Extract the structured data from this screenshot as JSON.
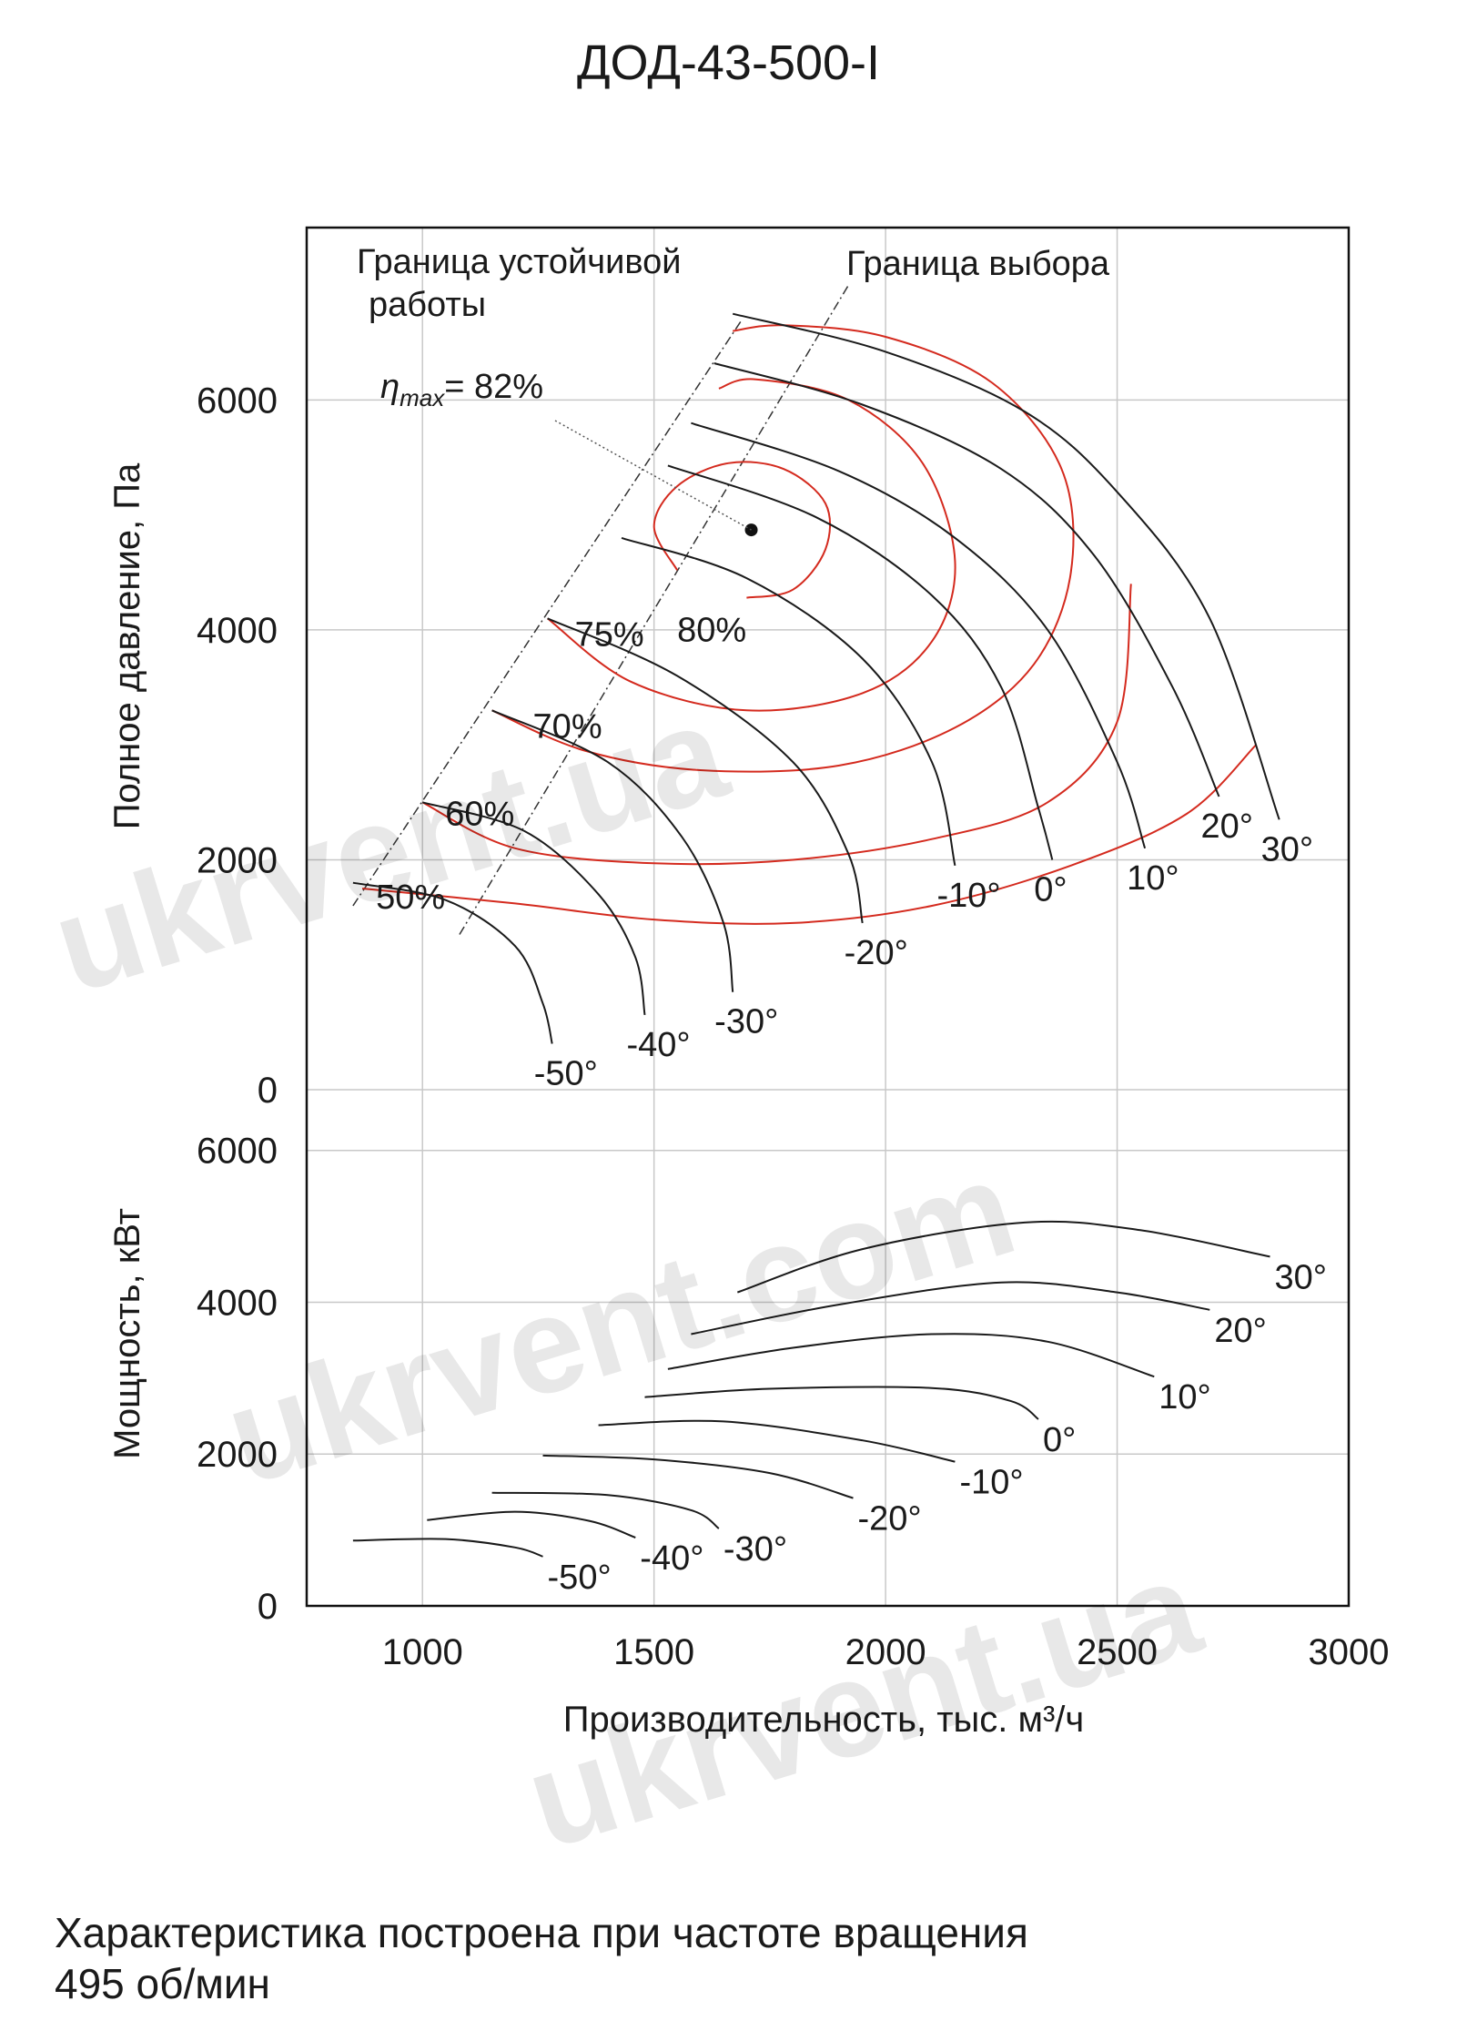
{
  "page": {
    "title": "ДОД-43-500-I",
    "footnote_line1": "Характеристика построена при частоте вращения",
    "footnote_line2": "495 об/мин",
    "watermark": "ukrvent.ua",
    "watermark_alt": "ukrvent.com"
  },
  "chart_data": {
    "type": "line",
    "title": "ДОД-43-500-I",
    "xlabel": "Производительность, тыс. м³/ч",
    "xlim": [
      750,
      3000
    ],
    "xticks": [
      "1000",
      "1500",
      "2000",
      "2500",
      "3000"
    ],
    "grid": true,
    "colors": {
      "curve": "#1a1a1a",
      "efficiency": "#d42a1e",
      "grid": "#c8c8c8"
    },
    "pressure": {
      "ylabel": "Полное давление, Па",
      "ylim": [
        0,
        7500
      ],
      "yticks": [
        "0",
        "2000",
        "4000",
        "6000"
      ],
      "boundary_labels": {
        "stable": [
          "Граница устойчивой",
          "работы"
        ],
        "selection": "Граница выбора"
      },
      "eta_max": {
        "label_symbol": "η",
        "label_sub": "max",
        "label_value": "= 82%",
        "x": 1710,
        "y": 4870
      },
      "blade_curves": [
        {
          "name": "30°",
          "label": "30°",
          "points": [
            [
              1670,
              6750
            ],
            [
              2000,
              6420
            ],
            [
              2300,
              5900
            ],
            [
              2500,
              5200
            ],
            [
              2700,
              4100
            ],
            [
              2850,
              2350
            ]
          ]
        },
        {
          "name": "20°",
          "label": "20°",
          "points": [
            [
              1630,
              6320
            ],
            [
              1950,
              5960
            ],
            [
              2250,
              5400
            ],
            [
              2450,
              4650
            ],
            [
              2620,
              3500
            ],
            [
              2720,
              2550
            ]
          ]
        },
        {
          "name": "10°",
          "label": "10°",
          "points": [
            [
              1580,
              5800
            ],
            [
              1900,
              5380
            ],
            [
              2150,
              4800
            ],
            [
              2350,
              4000
            ],
            [
              2500,
              2850
            ],
            [
              2560,
              2100
            ]
          ]
        },
        {
          "name": "0°",
          "label": "0°",
          "points": [
            [
              1530,
              5430
            ],
            [
              1850,
              4980
            ],
            [
              2100,
              4300
            ],
            [
              2250,
              3500
            ],
            [
              2330,
              2450
            ],
            [
              2360,
              2000
            ]
          ]
        },
        {
          "name": "-10°",
          "label": "-10°",
          "points": [
            [
              1430,
              4800
            ],
            [
              1700,
              4450
            ],
            [
              1950,
              3750
            ],
            [
              2100,
              2850
            ],
            [
              2150,
              1950
            ]
          ]
        },
        {
          "name": "-20°",
          "label": "-20°",
          "points": [
            [
              1270,
              4100
            ],
            [
              1550,
              3600
            ],
            [
              1800,
              2850
            ],
            [
              1920,
              2050
            ],
            [
              1950,
              1450
            ]
          ]
        },
        {
          "name": "-30°",
          "label": "-30°",
          "points": [
            [
              1150,
              3300
            ],
            [
              1400,
              2850
            ],
            [
              1560,
              2200
            ],
            [
              1650,
              1450
            ],
            [
              1670,
              850
            ]
          ]
        },
        {
          "name": "-40°",
          "label": "-40°",
          "points": [
            [
              1000,
              2500
            ],
            [
              1220,
              2250
            ],
            [
              1380,
              1700
            ],
            [
              1460,
              1150
            ],
            [
              1480,
              650
            ]
          ]
        },
        {
          "name": "-50°",
          "label": "-50°",
          "points": [
            [
              850,
              1800
            ],
            [
              1050,
              1650
            ],
            [
              1200,
              1250
            ],
            [
              1260,
              750
            ],
            [
              1280,
              400
            ]
          ]
        }
      ],
      "efficiency_curves": [
        {
          "name": "50%",
          "label": "50%",
          "points": [
            [
              870,
              1750
            ],
            [
              1200,
              1620
            ],
            [
              1500,
              1480
            ],
            [
              1800,
              1450
            ],
            [
              2100,
              1600
            ],
            [
              2400,
              1950
            ],
            [
              2650,
              2400
            ],
            [
              2800,
              3000
            ]
          ]
        },
        {
          "name": "60%",
          "label": "60%",
          "points": [
            [
              1000,
              2500
            ],
            [
              1200,
              2100
            ],
            [
              1500,
              1970
            ],
            [
              1800,
              2000
            ],
            [
              2100,
              2180
            ],
            [
              2350,
              2500
            ],
            [
              2500,
              3200
            ],
            [
              2530,
              4400
            ]
          ]
        },
        {
          "name": "70%",
          "label": "70%",
          "points": [
            [
              1150,
              3300
            ],
            [
              1350,
              2950
            ],
            [
              1600,
              2780
            ],
            [
              1900,
              2820
            ],
            [
              2150,
              3150
            ],
            [
              2320,
              3700
            ],
            [
              2400,
              4500
            ],
            [
              2380,
              5400
            ],
            [
              2230,
              6150
            ],
            [
              2000,
              6550
            ],
            [
              1780,
              6650
            ],
            [
              1670,
              6600
            ]
          ]
        },
        {
          "name": "75%",
          "label": "75%",
          "points": [
            [
              1270,
              4100
            ],
            [
              1450,
              3550
            ],
            [
              1700,
              3300
            ],
            [
              1950,
              3450
            ],
            [
              2100,
              3900
            ],
            [
              2150,
              4600
            ],
            [
              2080,
              5450
            ],
            [
              1920,
              6000
            ],
            [
              1720,
              6180
            ],
            [
              1640,
              6100
            ]
          ]
        },
        {
          "name": "80%",
          "label": "80%",
          "points": [
            [
              1550,
              4520
            ],
            [
              1500,
              4900
            ],
            [
              1550,
              5250
            ],
            [
              1660,
              5450
            ],
            [
              1780,
              5400
            ],
            [
              1870,
              5100
            ],
            [
              1870,
              4700
            ],
            [
              1800,
              4350
            ],
            [
              1700,
              4280
            ]
          ]
        }
      ]
    },
    "power": {
      "ylabel": "Мощность, кВт",
      "ylim": [
        0,
        6800
      ],
      "yticks": [
        "0",
        "2000",
        "4000",
        "6000"
      ],
      "series": [
        {
          "name": "30°",
          "label": "30°",
          "points": [
            [
              1680,
              4130
            ],
            [
              1950,
              4700
            ],
            [
              2300,
              5050
            ],
            [
              2550,
              4950
            ],
            [
              2830,
              4600
            ]
          ]
        },
        {
          "name": "20°",
          "label": "20°",
          "points": [
            [
              1580,
              3580
            ],
            [
              1900,
              3970
            ],
            [
              2250,
              4260
            ],
            [
              2500,
              4130
            ],
            [
              2700,
              3900
            ]
          ]
        },
        {
          "name": "10°",
          "label": "10°",
          "points": [
            [
              1530,
              3120
            ],
            [
              1800,
              3400
            ],
            [
              2100,
              3580
            ],
            [
              2350,
              3480
            ],
            [
              2580,
              3020
            ]
          ]
        },
        {
          "name": "0°",
          "label": "0°",
          "points": [
            [
              1480,
              2750
            ],
            [
              1750,
              2860
            ],
            [
              2100,
              2870
            ],
            [
              2270,
              2700
            ],
            [
              2330,
              2460
            ]
          ]
        },
        {
          "name": "-10°",
          "label": "-10°",
          "points": [
            [
              1380,
              2380
            ],
            [
              1650,
              2430
            ],
            [
              1950,
              2180
            ],
            [
              2150,
              1900
            ]
          ]
        },
        {
          "name": "-20°",
          "label": "-20°",
          "points": [
            [
              1260,
              1980
            ],
            [
              1500,
              1930
            ],
            [
              1750,
              1750
            ],
            [
              1930,
              1420
            ]
          ]
        },
        {
          "name": "-30°",
          "label": "-30°",
          "points": [
            [
              1150,
              1490
            ],
            [
              1400,
              1460
            ],
            [
              1580,
              1260
            ],
            [
              1640,
              1020
            ]
          ]
        },
        {
          "name": "-40°",
          "label": "-40°",
          "points": [
            [
              1010,
              1130
            ],
            [
              1200,
              1240
            ],
            [
              1360,
              1120
            ],
            [
              1460,
              900
            ]
          ]
        },
        {
          "name": "-50°",
          "label": "-50°",
          "points": [
            [
              850,
              860
            ],
            [
              1050,
              880
            ],
            [
              1200,
              770
            ],
            [
              1260,
              650
            ]
          ]
        }
      ]
    }
  }
}
